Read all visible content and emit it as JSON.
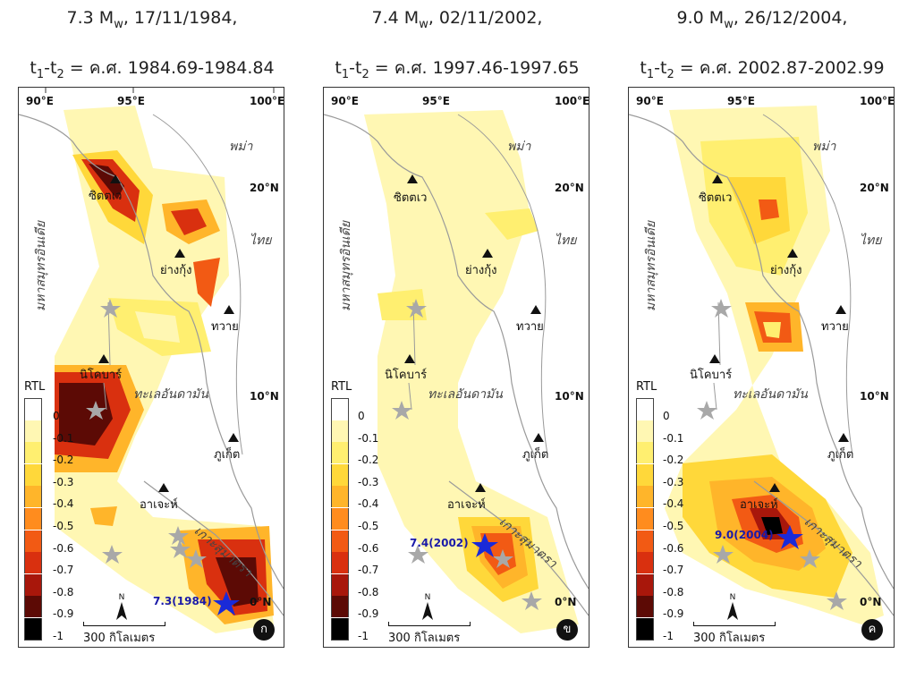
{
  "panels": [
    {
      "title_line1_pre": "7.3 M",
      "title_line1_sub": "w",
      "title_line1_post": ", 17/11/1984,",
      "title_line2_pre": "t",
      "title_line2_sub1": "1",
      "title_line2_mid": "-t",
      "title_line2_sub2": "2",
      "title_line2_post": " = ค.ศ. 1984.69-1984.84",
      "mainshock_label": "7.3(1984)",
      "badge": "ก"
    },
    {
      "title_line1_pre": "7.4 M",
      "title_line1_sub": "w",
      "title_line1_post": ", 02/11/2002,",
      "title_line2_pre": "t",
      "title_line2_sub1": "1",
      "title_line2_mid": "-t",
      "title_line2_sub2": "2",
      "title_line2_post": " = ค.ศ. 1997.46-1997.65",
      "mainshock_label": "7.4(2002)",
      "badge": "ข"
    },
    {
      "title_line1_pre": "9.0 M",
      "title_line1_sub": "w",
      "title_line1_post": ", 26/12/2004,",
      "title_line2_pre": "t",
      "title_line2_sub1": "1",
      "title_line2_mid": "-t",
      "title_line2_sub2": "2",
      "title_line2_post": " = ค.ศ. 2002.87-2002.99",
      "mainshock_label": "9.0(2004)",
      "badge": "ค"
    }
  ],
  "map_labels": {
    "lon_90": "90°E",
    "lon_95": "95°E",
    "lon_100": "100°E",
    "lat_20": "20°N",
    "lat_10": "10°N",
    "lat_0": "0°N",
    "myanmar": "พม่า",
    "thailand": "ไทย",
    "indian_ocean": "มหาสมุทรอินเดีย",
    "andaman_sea": "ทะเลอันดามัน",
    "sumatra": "เกาะสุมาตรา",
    "sittwe": "ซิตตเว",
    "yangon": "ย่างกุ้ง",
    "dawei": "ทวาย",
    "nicobar": "นิโคบาร์",
    "phuket": "ภูเก็ต",
    "aceh": "อาเจะห์",
    "scale": "300 กิโลเมตร",
    "north": "N"
  },
  "legend": {
    "title": "RTL",
    "ticks": [
      "0",
      "-0.1",
      "-0.2",
      "-0.3",
      "-0.4",
      "-0.5",
      "-0.6",
      "-0.7",
      "-0.8",
      "-0.9",
      "-1"
    ],
    "colors": [
      "#ffffff",
      "#fff7b3",
      "#ffef70",
      "#ffd83a",
      "#ffb52a",
      "#ff8c1e",
      "#f25a14",
      "#d9300f",
      "#a8170b",
      "#5c0a05",
      "#000000"
    ]
  },
  "colors": {
    "land_line": "#9a9a9a",
    "mainshock_star": "#1a2ad8",
    "aftershock_star": "#a8a8a8"
  }
}
